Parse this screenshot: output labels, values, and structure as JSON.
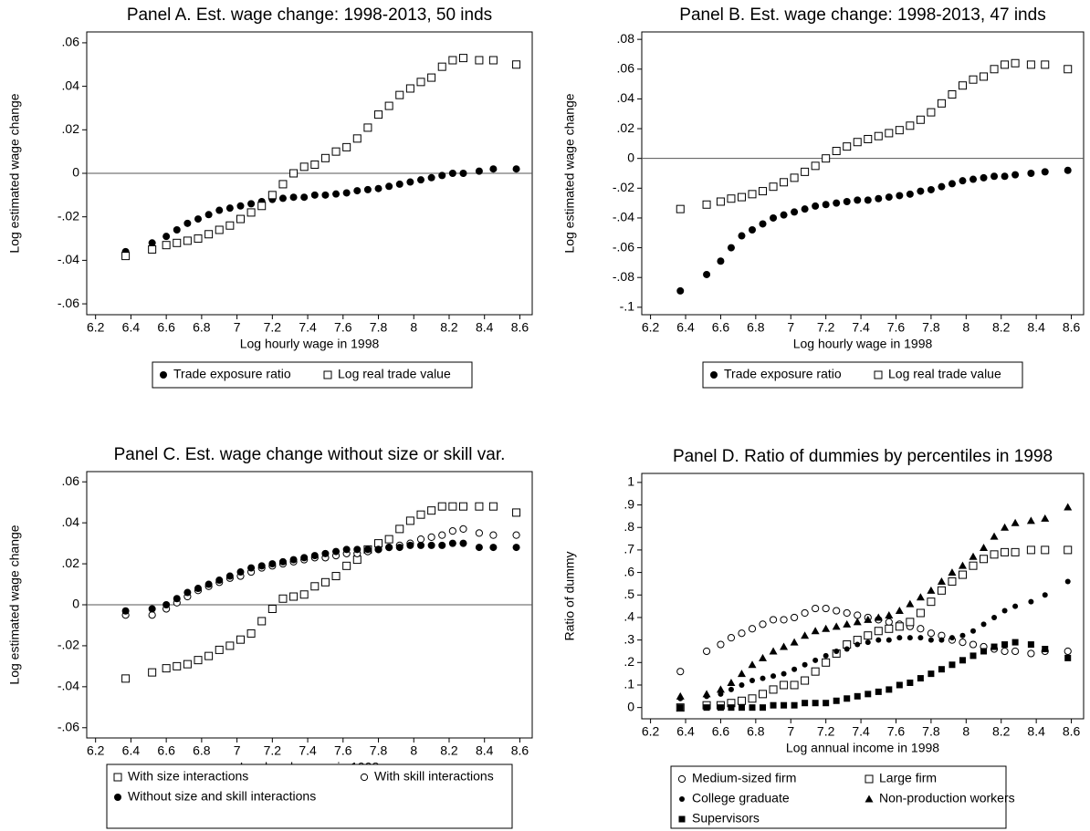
{
  "chart_data": [
    {
      "type": "scatter",
      "title": "Panel A. Est. wage change: 1998-2013, 50 inds",
      "xlabel": "Log hourly wage in 1998",
      "ylabel": "Log estimated wage change",
      "xlim": [
        6.15,
        8.67
      ],
      "ylim": [
        -0.065,
        0.065
      ],
      "hline": 0,
      "legend_columns": 2,
      "xticks": [
        6.2,
        6.4,
        6.6,
        6.8,
        7,
        7.2,
        7.4,
        7.6,
        7.8,
        8,
        8.2,
        8.4,
        8.6
      ],
      "yticks": [
        {
          "value": -0.06,
          "label": "-.06"
        },
        {
          "value": -0.04,
          "label": "-.04"
        },
        {
          "value": -0.02,
          "label": "-.02"
        },
        0,
        {
          "value": 0.02,
          "label": ".02"
        },
        {
          "value": 0.04,
          "label": ".04"
        },
        {
          "value": 0.06,
          "label": ".06"
        }
      ],
      "x": [
        6.37,
        6.52,
        6.6,
        6.66,
        6.72,
        6.78,
        6.84,
        6.9,
        6.96,
        7.02,
        7.08,
        7.14,
        7.2,
        7.26,
        7.32,
        7.38,
        7.44,
        7.5,
        7.56,
        7.62,
        7.68,
        7.74,
        7.8,
        7.86,
        7.92,
        7.98,
        8.04,
        8.1,
        8.16,
        8.22,
        8.28,
        8.37,
        8.45,
        8.58
      ],
      "series": [
        {
          "name": "Trade exposure ratio",
          "color": "#000000",
          "marker": "filled-circle",
          "values": [
            -0.036,
            -0.032,
            -0.029,
            -0.026,
            -0.023,
            -0.021,
            -0.019,
            -0.017,
            -0.016,
            -0.015,
            -0.014,
            -0.013,
            -0.012,
            -0.0115,
            -0.011,
            -0.011,
            -0.01,
            -0.01,
            -0.0095,
            -0.009,
            -0.008,
            -0.0075,
            -0.007,
            -0.006,
            -0.005,
            -0.004,
            -0.003,
            -0.002,
            -0.001,
            0.0,
            0.0,
            0.001,
            0.002,
            0.002
          ]
        },
        {
          "name": "Log real trade value",
          "color": "#000000",
          "marker": "hollow-square",
          "values": [
            -0.038,
            -0.035,
            -0.033,
            -0.032,
            -0.031,
            -0.03,
            -0.028,
            -0.026,
            -0.024,
            -0.021,
            -0.018,
            -0.015,
            -0.01,
            -0.005,
            0.0,
            0.003,
            0.004,
            0.007,
            0.01,
            0.012,
            0.016,
            0.021,
            0.027,
            0.031,
            0.036,
            0.039,
            0.042,
            0.044,
            0.049,
            0.052,
            0.053,
            0.052,
            0.052,
            0.05
          ]
        }
      ]
    },
    {
      "type": "scatter",
      "title": "Panel B. Est. wage change: 1998-2013, 47 inds",
      "xlabel": "Log hourly wage in 1998",
      "ylabel": "Log estimated wage change",
      "xlim": [
        6.15,
        8.67
      ],
      "ylim": [
        -0.105,
        0.085
      ],
      "hline": 0,
      "legend_columns": 2,
      "xticks": [
        6.2,
        6.4,
        6.6,
        6.8,
        7,
        7.2,
        7.4,
        7.6,
        7.8,
        8,
        8.2,
        8.4,
        8.6
      ],
      "yticks": [
        {
          "value": -0.1,
          "label": "-.1"
        },
        {
          "value": -0.08,
          "label": "-.08"
        },
        {
          "value": -0.06,
          "label": "-.06"
        },
        {
          "value": -0.04,
          "label": "-.04"
        },
        {
          "value": -0.02,
          "label": "-.02"
        },
        0,
        {
          "value": 0.02,
          "label": ".02"
        },
        {
          "value": 0.04,
          "label": ".04"
        },
        {
          "value": 0.06,
          "label": ".06"
        },
        {
          "value": 0.08,
          "label": ".08"
        }
      ],
      "x": [
        6.37,
        6.52,
        6.6,
        6.66,
        6.72,
        6.78,
        6.84,
        6.9,
        6.96,
        7.02,
        7.08,
        7.14,
        7.2,
        7.26,
        7.32,
        7.38,
        7.44,
        7.5,
        7.56,
        7.62,
        7.68,
        7.74,
        7.8,
        7.86,
        7.92,
        7.98,
        8.04,
        8.1,
        8.16,
        8.22,
        8.28,
        8.37,
        8.45,
        8.58
      ],
      "series": [
        {
          "name": "Trade exposure ratio",
          "color": "#000000",
          "marker": "filled-circle",
          "values": [
            -0.089,
            -0.078,
            -0.069,
            -0.06,
            -0.052,
            -0.048,
            -0.044,
            -0.04,
            -0.038,
            -0.036,
            -0.034,
            -0.032,
            -0.031,
            -0.03,
            -0.029,
            -0.028,
            -0.028,
            -0.027,
            -0.026,
            -0.025,
            -0.024,
            -0.022,
            -0.021,
            -0.019,
            -0.017,
            -0.015,
            -0.014,
            -0.013,
            -0.012,
            -0.012,
            -0.011,
            -0.01,
            -0.009,
            -0.008
          ]
        },
        {
          "name": "Log real trade value",
          "color": "#000000",
          "marker": "hollow-square",
          "values": [
            -0.034,
            -0.031,
            -0.029,
            -0.027,
            -0.026,
            -0.024,
            -0.022,
            -0.019,
            -0.016,
            -0.013,
            -0.009,
            -0.005,
            0.0,
            0.005,
            0.008,
            0.011,
            0.013,
            0.015,
            0.017,
            0.019,
            0.022,
            0.026,
            0.031,
            0.037,
            0.043,
            0.049,
            0.053,
            0.055,
            0.06,
            0.063,
            0.064,
            0.063,
            0.063,
            0.06
          ]
        }
      ]
    },
    {
      "type": "scatter",
      "title": "Panel C. Est. wage change without size or skill var.",
      "xlabel": "Log hourly wage in 1998",
      "ylabel": "Log estimated wage change",
      "xlim": [
        6.15,
        8.67
      ],
      "ylim": [
        -0.065,
        0.065
      ],
      "hline": 0,
      "legend_columns": 2,
      "xticks": [
        6.2,
        6.4,
        6.6,
        6.8,
        7,
        7.2,
        7.4,
        7.6,
        7.8,
        8,
        8.2,
        8.4,
        8.6
      ],
      "yticks": [
        {
          "value": -0.06,
          "label": "-.06"
        },
        {
          "value": -0.04,
          "label": "-.04"
        },
        {
          "value": -0.02,
          "label": "-.02"
        },
        0,
        {
          "value": 0.02,
          "label": ".02"
        },
        {
          "value": 0.04,
          "label": ".04"
        },
        {
          "value": 0.06,
          "label": ".06"
        }
      ],
      "x": [
        6.37,
        6.52,
        6.6,
        6.66,
        6.72,
        6.78,
        6.84,
        6.9,
        6.96,
        7.02,
        7.08,
        7.14,
        7.2,
        7.26,
        7.32,
        7.38,
        7.44,
        7.5,
        7.56,
        7.62,
        7.68,
        7.74,
        7.8,
        7.86,
        7.92,
        7.98,
        8.04,
        8.1,
        8.16,
        8.22,
        8.28,
        8.37,
        8.45,
        8.58
      ],
      "series": [
        {
          "name": "With size interactions",
          "color": "#000000",
          "marker": "hollow-square",
          "values": [
            -0.036,
            -0.033,
            -0.031,
            -0.03,
            -0.029,
            -0.027,
            -0.025,
            -0.022,
            -0.02,
            -0.017,
            -0.014,
            -0.008,
            -0.002,
            0.003,
            0.004,
            0.005,
            0.009,
            0.011,
            0.014,
            0.019,
            0.022,
            0.027,
            0.03,
            0.032,
            0.037,
            0.041,
            0.044,
            0.046,
            0.048,
            0.048,
            0.048,
            0.048,
            0.048,
            0.045
          ]
        },
        {
          "name": "With skill interactions",
          "color": "#000000",
          "marker": "hollow-circle",
          "values": [
            -0.005,
            -0.005,
            -0.002,
            0.001,
            0.004,
            0.007,
            0.009,
            0.011,
            0.013,
            0.014,
            0.016,
            0.018,
            0.019,
            0.02,
            0.021,
            0.022,
            0.023,
            0.023,
            0.024,
            0.025,
            0.025,
            0.026,
            0.027,
            0.028,
            0.029,
            0.03,
            0.032,
            0.033,
            0.034,
            0.036,
            0.037,
            0.035,
            0.034,
            0.034
          ]
        },
        {
          "name": "Without size and skill interactions",
          "color": "#000000",
          "marker": "filled-circle",
          "values": [
            -0.003,
            -0.002,
            0.0,
            0.003,
            0.006,
            0.008,
            0.01,
            0.012,
            0.014,
            0.016,
            0.018,
            0.019,
            0.02,
            0.021,
            0.022,
            0.023,
            0.024,
            0.025,
            0.026,
            0.027,
            0.027,
            0.027,
            0.027,
            0.028,
            0.028,
            0.029,
            0.029,
            0.029,
            0.029,
            0.03,
            0.03,
            0.028,
            0.028,
            0.028
          ]
        }
      ]
    },
    {
      "type": "scatter",
      "title": "Panel D. Ratio of dummies by percentiles in 1998",
      "xlabel": "Log annual income in 1998",
      "ylabel": "Ratio of dummy",
      "xlim": [
        6.15,
        8.67
      ],
      "ylim": [
        -0.05,
        1.04
      ],
      "legend_columns": 2,
      "xticks": [
        6.2,
        6.4,
        6.6,
        6.8,
        7,
        7.2,
        7.4,
        7.6,
        7.8,
        8,
        8.2,
        8.4,
        8.6
      ],
      "yticks": [
        0,
        {
          "value": 0.1,
          "label": ".1"
        },
        {
          "value": 0.2,
          "label": ".2"
        },
        {
          "value": 0.3,
          "label": ".3"
        },
        {
          "value": 0.4,
          "label": ".4"
        },
        {
          "value": 0.5,
          "label": ".5"
        },
        {
          "value": 0.6,
          "label": ".6"
        },
        {
          "value": 0.7,
          "label": ".7"
        },
        {
          "value": 0.8,
          "label": ".8"
        },
        {
          "value": 0.9,
          "label": ".9"
        },
        1
      ],
      "x": [
        6.37,
        6.52,
        6.6,
        6.66,
        6.72,
        6.78,
        6.84,
        6.9,
        6.96,
        7.02,
        7.08,
        7.14,
        7.2,
        7.26,
        7.32,
        7.38,
        7.44,
        7.5,
        7.56,
        7.62,
        7.68,
        7.74,
        7.8,
        7.86,
        7.92,
        7.98,
        8.04,
        8.1,
        8.16,
        8.22,
        8.28,
        8.37,
        8.45,
        8.58
      ],
      "series": [
        {
          "name": "Medium-sized firm",
          "color": "#000000",
          "marker": "hollow-circle",
          "values": [
            0.16,
            0.25,
            0.28,
            0.31,
            0.33,
            0.35,
            0.37,
            0.39,
            0.39,
            0.4,
            0.42,
            0.44,
            0.44,
            0.43,
            0.42,
            0.41,
            0.4,
            0.39,
            0.38,
            0.37,
            0.36,
            0.35,
            0.33,
            0.32,
            0.3,
            0.29,
            0.28,
            0.27,
            0.26,
            0.25,
            0.25,
            0.24,
            0.25,
            0.25
          ]
        },
        {
          "name": "Large firm",
          "color": "#000000",
          "marker": "hollow-square",
          "values": [
            0.0,
            0.01,
            0.01,
            0.02,
            0.03,
            0.04,
            0.06,
            0.08,
            0.1,
            0.1,
            0.12,
            0.16,
            0.2,
            0.24,
            0.28,
            0.3,
            0.32,
            0.34,
            0.35,
            0.36,
            0.38,
            0.42,
            0.47,
            0.52,
            0.56,
            0.59,
            0.63,
            0.66,
            0.68,
            0.69,
            0.69,
            0.7,
            0.7,
            0.7
          ]
        },
        {
          "name": "College graduate",
          "color": "#000000",
          "marker": "small-dot",
          "values": [
            0.04,
            0.05,
            0.06,
            0.08,
            0.1,
            0.12,
            0.13,
            0.14,
            0.15,
            0.17,
            0.19,
            0.21,
            0.23,
            0.25,
            0.26,
            0.28,
            0.29,
            0.3,
            0.3,
            0.31,
            0.31,
            0.31,
            0.3,
            0.3,
            0.31,
            0.32,
            0.34,
            0.37,
            0.4,
            0.43,
            0.45,
            0.47,
            0.5,
            0.56
          ]
        },
        {
          "name": "Non-production workers",
          "color": "#000000",
          "marker": "triangle",
          "values": [
            0.05,
            0.06,
            0.08,
            0.11,
            0.15,
            0.19,
            0.22,
            0.25,
            0.27,
            0.29,
            0.32,
            0.34,
            0.35,
            0.36,
            0.37,
            0.38,
            0.39,
            0.4,
            0.41,
            0.43,
            0.46,
            0.49,
            0.52,
            0.56,
            0.6,
            0.63,
            0.67,
            0.71,
            0.76,
            0.8,
            0.82,
            0.83,
            0.84,
            0.89
          ]
        },
        {
          "name": "Supervisors",
          "color": "#000000",
          "marker": "filled-square",
          "values": [
            0.0,
            0.0,
            0.0,
            0.0,
            0.0,
            0.0,
            0.0,
            0.01,
            0.01,
            0.01,
            0.02,
            0.02,
            0.02,
            0.03,
            0.04,
            0.05,
            0.06,
            0.07,
            0.08,
            0.1,
            0.11,
            0.13,
            0.15,
            0.17,
            0.19,
            0.21,
            0.23,
            0.25,
            0.27,
            0.28,
            0.29,
            0.28,
            0.26,
            0.22
          ]
        }
      ]
    }
  ]
}
